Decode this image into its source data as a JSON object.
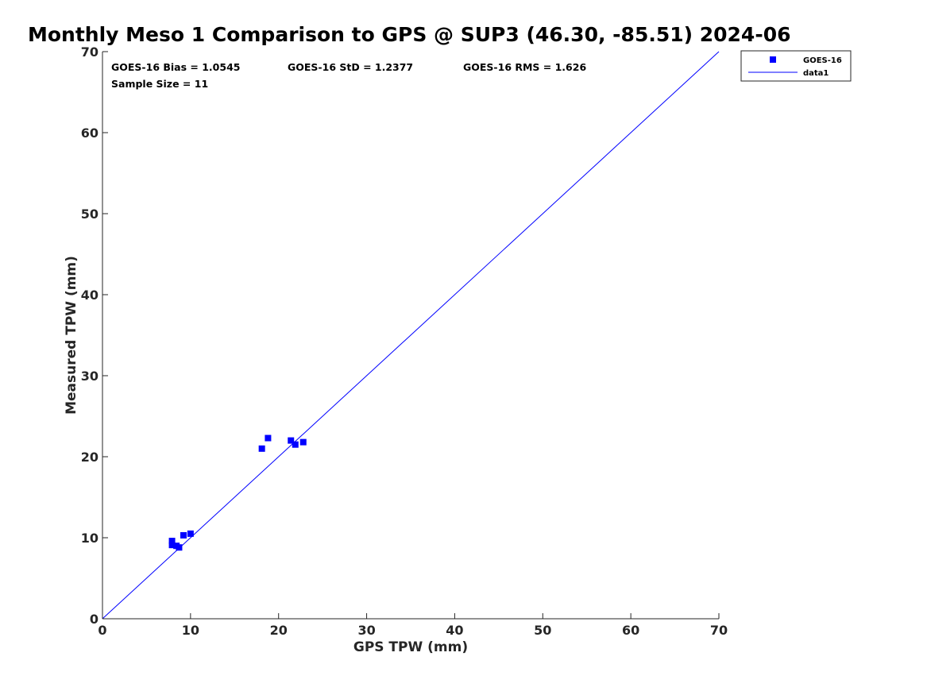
{
  "chart_data": {
    "type": "scatter",
    "title": "Monthly Meso 1 Comparison to GPS @ SUP3 (46.30, -85.51) 2024-06",
    "xlabel": "GPS TPW (mm)",
    "ylabel": "Measured TPW (mm)",
    "xlim": [
      0,
      70
    ],
    "ylim": [
      0,
      70
    ],
    "xticks": [
      "0",
      "10",
      "20",
      "30",
      "40",
      "50",
      "60",
      "70"
    ],
    "yticks": [
      "0",
      "10",
      "20",
      "30",
      "40",
      "50",
      "60",
      "70"
    ],
    "grid": false,
    "legend_position": "top-right-outside",
    "series": [
      {
        "name": "GOES-16",
        "kind": "scatter",
        "marker": "square",
        "color": "#0000ff",
        "points": [
          {
            "x": 7.9,
            "y": 9.6
          },
          {
            "x": 7.9,
            "y": 9.1
          },
          {
            "x": 8.4,
            "y": 9.0
          },
          {
            "x": 8.7,
            "y": 8.8
          },
          {
            "x": 9.2,
            "y": 10.3
          },
          {
            "x": 10.0,
            "y": 10.5
          },
          {
            "x": 18.1,
            "y": 21.0
          },
          {
            "x": 18.8,
            "y": 22.3
          },
          {
            "x": 21.4,
            "y": 22.0
          },
          {
            "x": 21.9,
            "y": 21.5
          },
          {
            "x": 22.8,
            "y": 21.8
          }
        ]
      },
      {
        "name": "data1",
        "kind": "line",
        "color": "#0000ff",
        "points": [
          {
            "x": 0,
            "y": 0
          },
          {
            "x": 70,
            "y": 70
          }
        ]
      }
    ],
    "annotations": {
      "bias": "GOES-16 Bias = 1.0545",
      "std": "GOES-16 StD = 1.2377",
      "rms": "GOES-16 RMS = 1.626",
      "sample_size": "Sample Size = 11"
    }
  }
}
